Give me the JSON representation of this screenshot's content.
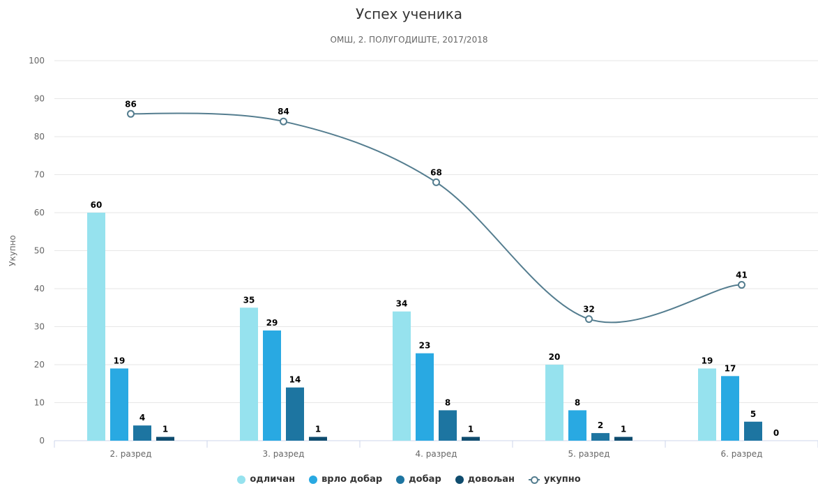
{
  "chart_data": {
    "type": "bar",
    "title": "Успех ученика",
    "subtitle": "ОМШ, 2. ПОЛУГОДИШТЕ, 2017/2018",
    "ylabel": "Укупно",
    "xlabel": "",
    "ylim": [
      0,
      100
    ],
    "yticks": [
      "0",
      "10",
      "20",
      "30",
      "40",
      "50",
      "60",
      "70",
      "80",
      "90",
      "100"
    ],
    "categories": [
      "2. разред",
      "3. разред",
      "4. разред",
      "5. разред",
      "6. разред"
    ],
    "series": [
      {
        "name": "одличан",
        "type": "bar",
        "color": "#96e2ee",
        "values": [
          60,
          35,
          34,
          20,
          19
        ]
      },
      {
        "name": "врло добар",
        "type": "bar",
        "color": "#29a9e2",
        "values": [
          19,
          29,
          23,
          8,
          17
        ]
      },
      {
        "name": "добар",
        "type": "bar",
        "color": "#1d75a1",
        "values": [
          4,
          14,
          8,
          2,
          5
        ]
      },
      {
        "name": "довољан",
        "type": "bar",
        "color": "#0f4c6e",
        "values": [
          1,
          1,
          1,
          1,
          0
        ]
      },
      {
        "name": "укупно",
        "type": "line",
        "color": "#547d8f",
        "values": [
          86,
          84,
          68,
          32,
          41
        ]
      }
    ],
    "grid": true,
    "legend_position": "bottom-center"
  }
}
